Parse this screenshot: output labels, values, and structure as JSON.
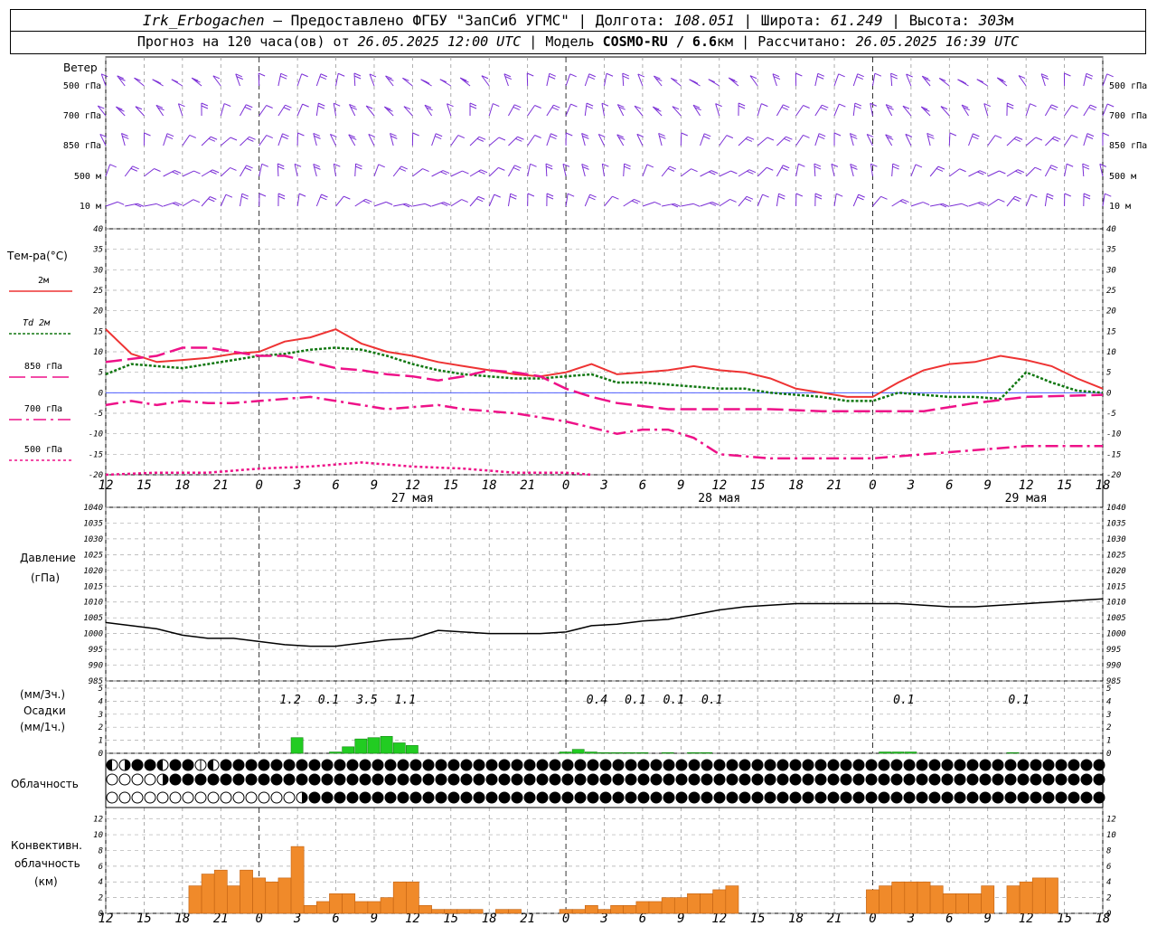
{
  "header": {
    "station": "Irk_Erbogachen",
    "provider": "– Предоставлено ФГБУ \"ЗапСиб УГМС\"",
    "lon_label": "Долгота:",
    "lon": "108.051",
    "lat_label": "Широта:",
    "lat": "61.249",
    "alt_label": "Высота:",
    "alt": "303",
    "alt_unit": "м",
    "forecast_prefix": "Прогноз на 120 часа(ов) от",
    "forecast_start": "26.05.2025 12:00 UTC",
    "model_label": "Модель",
    "model": "COSMO-RU / 6.6",
    "model_unit": "км",
    "calc_label": "Рассчитано:",
    "calc_time": "26.05.2025 16:39 UTC"
  },
  "wind_panel": {
    "title": "Ветер",
    "levels": [
      "500 гПа",
      "700 гПа",
      "850 гПа",
      "500 м",
      "10  м"
    ]
  },
  "temp_panel": {
    "title": "Тем-ра(°C)",
    "legend": [
      {
        "label": "2м",
        "color": "#ee3333",
        "dash": "solid"
      },
      {
        "label": "Td  2м",
        "color": "#117711",
        "dash": "dotted"
      },
      {
        "label": "850 гПа",
        "color": "#ee1188",
        "dash": "longdash"
      },
      {
        "label": "700 гПа",
        "color": "#ee1188",
        "dash": "dashdot"
      },
      {
        "label": "500 гПа",
        "color": "#ee1188",
        "dash": "dot"
      }
    ],
    "y_ticks": [
      "40",
      "35",
      "30",
      "25",
      "20",
      "15",
      "10",
      "5",
      "0",
      "-5",
      "-10",
      "-15",
      "-20"
    ]
  },
  "time_axis": {
    "hour_labels": [
      "12",
      "15",
      "18",
      "21",
      "0",
      "3",
      "6",
      "9",
      "12",
      "15",
      "18",
      "21",
      "0",
      "3",
      "6",
      "9",
      "12",
      "15",
      "18",
      "21",
      "0",
      "3",
      "6",
      "9",
      "12",
      "15",
      "18"
    ],
    "date_labels": [
      "27 мая",
      "28 мая",
      "29 мая"
    ]
  },
  "pressure_panel": {
    "title1": "Давление",
    "title2": "(гПа)",
    "y_ticks": [
      "1040",
      "1035",
      "1030",
      "1025",
      "1020",
      "1015",
      "1010",
      "1005",
      "1000",
      "995",
      "990",
      "985"
    ]
  },
  "precip_panel": {
    "title1": "(мм/3ч.)",
    "title2": "Осадки",
    "title3": "(мм/1ч.)",
    "y_ticks": [
      "5",
      "4",
      "3",
      "2",
      "1",
      "0"
    ],
    "sums": [
      {
        "h": 15,
        "text": "1.2"
      },
      {
        "h": 18,
        "text": "0.1"
      },
      {
        "h": 21,
        "text": "3.5"
      },
      {
        "h": 24,
        "text": "1.1"
      },
      {
        "h": 39,
        "text": "0.4"
      },
      {
        "h": 42,
        "text": "0.1"
      },
      {
        "h": 45,
        "text": "0.1"
      },
      {
        "h": 48,
        "text": "0.1"
      },
      {
        "h": 63,
        "text": "0.1"
      },
      {
        "h": 72,
        "text": "0.1"
      }
    ]
  },
  "cloud_panel": {
    "title": "Облачность",
    "rows": [
      "LHBBLBBRLBBBBBBBBBBBBBBBBBBBBBBBBBBBBBBBBBBBBBBBBBBBBBBBBBBBBBBBBBBBBBBBBBBBBBBBBBBBBBBBBBBBBBBBBBBBBBBBBBBB",
      "OOOOHBBBBBBBBBBBBBBBBBBBBBBBBBBBBBBBBBBBBBBBBBBBBBBBBBBBBBBBBBBBBBBBBBBBBBBBBBBBBBBBBBBBBBBBBBBBBBBBBBBBBBBBB",
      "OOOOOOOOOOOOOOOHBBBBBBBBBBBBBBBBBBBBBBBBBBBBBBBBBBBBBBBBBBBBBBBBBBBBBBBBBBBBBBBBBBBBBBBBBBBBBBBBBBBBBBBBBBBB"
    ]
  },
  "conv_panel": {
    "title1": "Конвективн.",
    "title2": "облачность",
    "title3": "(км)",
    "y_ticks": [
      "12",
      "10",
      "8",
      "6",
      "4",
      "2",
      "0"
    ]
  },
  "chart_data": [
    {
      "type": "line",
      "name": "temperature",
      "x_unit": "hours since 26.05.2025 12:00 UTC",
      "ylim": [
        -20,
        40
      ],
      "series": [
        {
          "name": "2м",
          "x": [
            0,
            2,
            4,
            6,
            8,
            10,
            12,
            14,
            16,
            18,
            20,
            22,
            24,
            26,
            28,
            30,
            32,
            34,
            36,
            38,
            40,
            42,
            44,
            46,
            48,
            50,
            52,
            54,
            56,
            58,
            60,
            62,
            64,
            66,
            68,
            70,
            72,
            74,
            76,
            78
          ],
          "values": [
            15.5,
            9.5,
            7.5,
            8.0,
            8.5,
            9.5,
            10.0,
            12.5,
            13.5,
            15.5,
            12.0,
            10.0,
            9.0,
            7.5,
            6.5,
            5.5,
            4.5,
            4.0,
            5.0,
            7.0,
            4.5,
            5.0,
            5.5,
            6.5,
            5.5,
            5.0,
            3.5,
            1.0,
            0.0,
            -1.0,
            -1.0,
            2.5,
            5.5,
            7.0,
            7.5,
            9.0,
            8.0,
            6.5,
            3.5,
            1.0
          ]
        },
        {
          "name": "Td  2м",
          "x": [
            0,
            2,
            4,
            6,
            8,
            10,
            12,
            14,
            16,
            18,
            20,
            22,
            24,
            26,
            28,
            30,
            32,
            34,
            36,
            38,
            40,
            42,
            44,
            46,
            48,
            50,
            52,
            54,
            56,
            58,
            60,
            62,
            64,
            66,
            68,
            70,
            72,
            74,
            76,
            78
          ],
          "values": [
            4.5,
            7.0,
            6.5,
            6.0,
            7.0,
            8.0,
            9.0,
            9.5,
            10.5,
            11.0,
            10.5,
            9.0,
            7.0,
            5.5,
            4.5,
            4.0,
            3.5,
            3.5,
            4.0,
            4.5,
            2.5,
            2.5,
            2.0,
            1.5,
            1.0,
            1.0,
            0.0,
            -0.5,
            -1.0,
            -2.0,
            -2.0,
            0.0,
            -0.5,
            -1.0,
            -1.0,
            -1.5,
            5.0,
            2.5,
            0.5,
            0.0
          ]
        },
        {
          "name": "850 гПа",
          "x": [
            0,
            4,
            6,
            8,
            10,
            12,
            14,
            16,
            18,
            20,
            22,
            24,
            26,
            28,
            30,
            32,
            34,
            36,
            38,
            40,
            44,
            48,
            52,
            56,
            60,
            64,
            68,
            72,
            78
          ],
          "values": [
            7.5,
            9.0,
            11.0,
            11.0,
            10.0,
            9.0,
            9.0,
            7.5,
            6.0,
            5.5,
            4.5,
            4.0,
            3.0,
            4.0,
            5.5,
            5.0,
            4.0,
            1.0,
            -1.0,
            -2.5,
            -4.0,
            -4.0,
            -4.0,
            -4.5,
            -4.5,
            -4.5,
            -2.5,
            -1.0,
            -0.5
          ]
        },
        {
          "name": "700 гПа",
          "x": [
            0,
            2,
            4,
            6,
            8,
            10,
            12,
            14,
            16,
            18,
            20,
            22,
            24,
            26,
            28,
            30,
            32,
            34,
            36,
            38,
            40,
            42,
            44,
            46,
            48,
            50,
            52,
            56,
            60,
            64,
            68,
            72,
            78
          ],
          "values": [
            -3.0,
            -2.0,
            -3.0,
            -2.0,
            -2.5,
            -2.5,
            -2.0,
            -1.5,
            -1.0,
            -2.0,
            -3.0,
            -4.0,
            -3.5,
            -3.0,
            -4.0,
            -4.5,
            -5.0,
            -6.0,
            -7.0,
            -8.5,
            -10.0,
            -9.0,
            -9.0,
            -11.0,
            -15.0,
            -15.5,
            -16.0,
            -16.0,
            -16.0,
            -15.0,
            -14.0,
            -13.0,
            -13.0
          ]
        },
        {
          "name": "500 гПа",
          "x": [
            0,
            4,
            8,
            12,
            16,
            20,
            24,
            28,
            32,
            36,
            38
          ],
          "values": [
            -20.0,
            -19.5,
            -19.5,
            -18.5,
            -18.0,
            -17.0,
            -18.0,
            -18.5,
            -19.5,
            -19.5,
            -20.0
          ]
        }
      ]
    },
    {
      "type": "line",
      "name": "pressure",
      "x_unit": "hours since 26.05.2025 12:00 UTC",
      "ylim": [
        985,
        1040
      ],
      "series": [
        {
          "name": "Давление",
          "x": [
            0,
            2,
            4,
            6,
            8,
            10,
            12,
            14,
            16,
            18,
            20,
            22,
            24,
            26,
            28,
            30,
            32,
            34,
            36,
            38,
            40,
            42,
            44,
            46,
            48,
            50,
            52,
            54,
            56,
            58,
            60,
            62,
            64,
            66,
            68,
            70,
            72,
            74,
            76,
            78
          ],
          "values": [
            1003.5,
            1002.5,
            1001.5,
            999.5,
            998.5,
            998.5,
            997.5,
            996.5,
            996.0,
            996.0,
            997.0,
            998.0,
            998.5,
            1001.0,
            1000.5,
            1000.0,
            1000.0,
            1000.0,
            1000.5,
            1002.5,
            1003.0,
            1004.0,
            1004.5,
            1006.0,
            1007.5,
            1008.5,
            1009.0,
            1009.5,
            1009.5,
            1009.5,
            1009.5,
            1009.5,
            1009.0,
            1008.5,
            1008.5,
            1009.0,
            1009.5,
            1010.0,
            1010.5,
            1011.0
          ]
        }
      ]
    },
    {
      "type": "bar",
      "name": "precipitation",
      "x_unit": "hours since 26.05.2025 12:00 UTC",
      "ylabel": "мм/1ч.",
      "ylim": [
        0,
        5
      ],
      "x": [
        14,
        15,
        16,
        17,
        18,
        19,
        20,
        21,
        22,
        23,
        24,
        25,
        26,
        36,
        37,
        38,
        39,
        40,
        41,
        42,
        43,
        44,
        45,
        46,
        47,
        48,
        49,
        50,
        61,
        62,
        63,
        64,
        70,
        71,
        72
      ],
      "values": [
        0.0,
        1.2,
        0.0,
        0.0,
        0.1,
        0.5,
        1.1,
        1.2,
        1.3,
        0.8,
        0.6,
        0.0,
        0.0,
        0.1,
        0.3,
        0.1,
        0.05,
        0.05,
        0.05,
        0.05,
        0.0,
        0.05,
        0.0,
        0.05,
        0.05,
        0.0,
        0.0,
        0.0,
        0.1,
        0.1,
        0.1,
        0.0,
        0.0,
        0.05,
        0.0
      ]
    },
    {
      "type": "bar",
      "name": "convective_cloud",
      "x_unit": "hours since 26.05.2025 12:00 UTC",
      "ylabel": "км",
      "ylim": [
        0,
        13
      ],
      "x": [
        6,
        7,
        8,
        9,
        10,
        11,
        12,
        13,
        14,
        15,
        16,
        17,
        18,
        19,
        20,
        21,
        22,
        23,
        24,
        25,
        26,
        27,
        28,
        29,
        30,
        31,
        32,
        33,
        34,
        35,
        36,
        37,
        38,
        39,
        40,
        41,
        42,
        43,
        44,
        45,
        46,
        47,
        48,
        49,
        60,
        61,
        62,
        63,
        64,
        65,
        66,
        67,
        68,
        69,
        70,
        71,
        72,
        73,
        74
      ],
      "values": [
        0,
        3.5,
        5,
        5.5,
        3.5,
        5.5,
        4.5,
        4,
        4.5,
        8.5,
        1,
        1.5,
        2.5,
        2.5,
        1.5,
        1.5,
        2,
        4,
        4,
        1,
        0.5,
        0.5,
        0.5,
        0.5,
        0,
        0.5,
        0.5,
        0,
        0,
        0,
        0.5,
        0.5,
        1,
        0.5,
        1,
        1,
        1.5,
        1.5,
        2,
        2,
        2.5,
        2.5,
        3,
        3.5,
        3,
        3.5,
        4,
        4,
        4,
        3.5,
        2.5,
        2.5,
        2.5,
        3.5,
        0,
        3.5,
        4,
        4.5,
        4.5
      ]
    }
  ]
}
